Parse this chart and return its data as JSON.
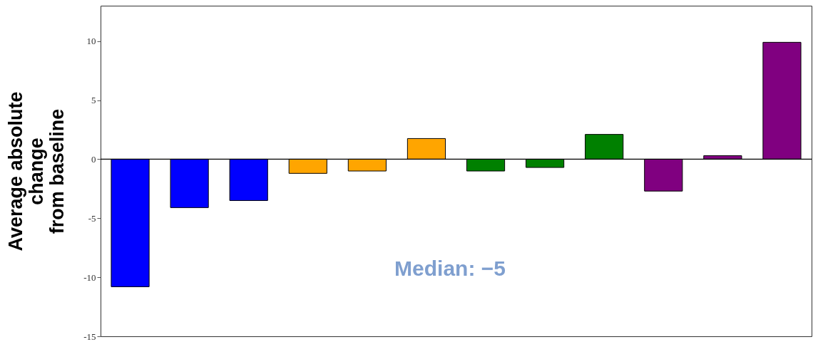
{
  "chart_data": {
    "type": "bar",
    "ylabel": "Average absolute\nchange\nfrom baseline",
    "categories": [
      null,
      null,
      null,
      null,
      null,
      null,
      null,
      null,
      null,
      null,
      null,
      null
    ],
    "values": [
      -10.8,
      -4.1,
      -3.5,
      -1.2,
      -1.0,
      1.75,
      -1.0,
      -0.7,
      2.1,
      -2.7,
      0.3,
      9.9
    ],
    "colors": [
      "#0000ff",
      "#0000ff",
      "#0000ff",
      "#ffa500",
      "#ffa500",
      "#ffa500",
      "#008000",
      "#008000",
      "#008000",
      "#800080",
      "#800080",
      "#800080"
    ],
    "ylim": [
      -15,
      13
    ],
    "yticks": [
      -15,
      -10,
      -5,
      0,
      5,
      10
    ],
    "ref_lines": [
      {
        "axis": "y",
        "value": 0,
        "color": "#000000"
      }
    ],
    "annotations": [
      "Median: −5"
    ],
    "grid": false
  }
}
